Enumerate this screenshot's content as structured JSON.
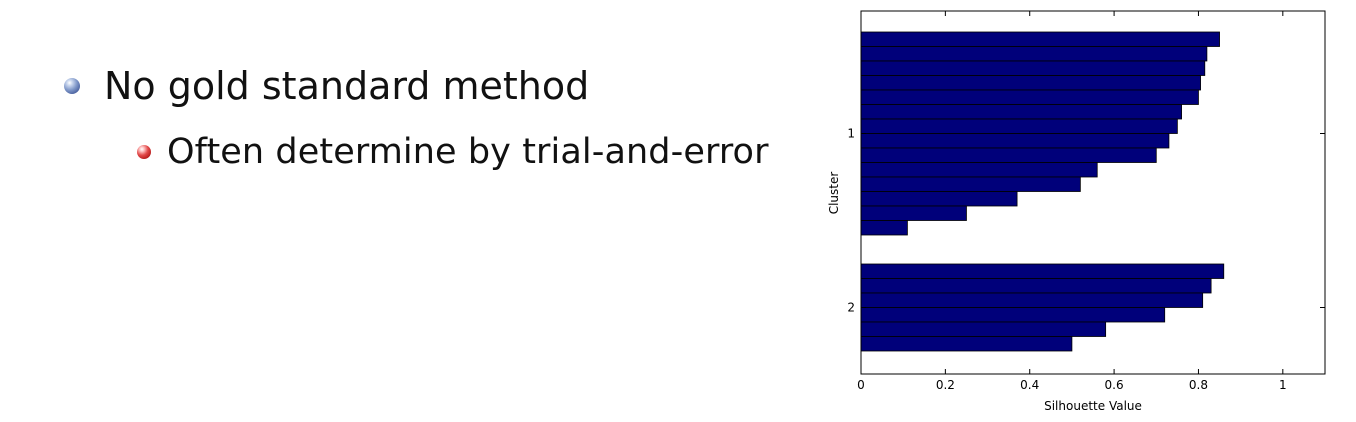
{
  "slide": {
    "bullets": [
      {
        "level": 1,
        "text": "No gold standard method"
      },
      {
        "level": 2,
        "text": "Often determine by trial-and-error"
      }
    ]
  },
  "chart_data": {
    "type": "bar",
    "orientation": "horizontal",
    "xlabel": "Silhouette Value",
    "ylabel": "Cluster",
    "xlim": [
      0,
      1.1
    ],
    "xticks": [
      "0",
      "0.2",
      "0.4",
      "0.6",
      "0.8",
      "1"
    ],
    "clusters": [
      {
        "label": "1",
        "values": [
          0.85,
          0.82,
          0.815,
          0.805,
          0.8,
          0.76,
          0.75,
          0.73,
          0.7,
          0.56,
          0.52,
          0.37,
          0.25,
          0.11
        ]
      },
      {
        "label": "2",
        "values": [
          0.86,
          0.83,
          0.81,
          0.72,
          0.58,
          0.5
        ]
      }
    ],
    "bar_color": "#00007a",
    "grid": false,
    "legend": "none"
  }
}
